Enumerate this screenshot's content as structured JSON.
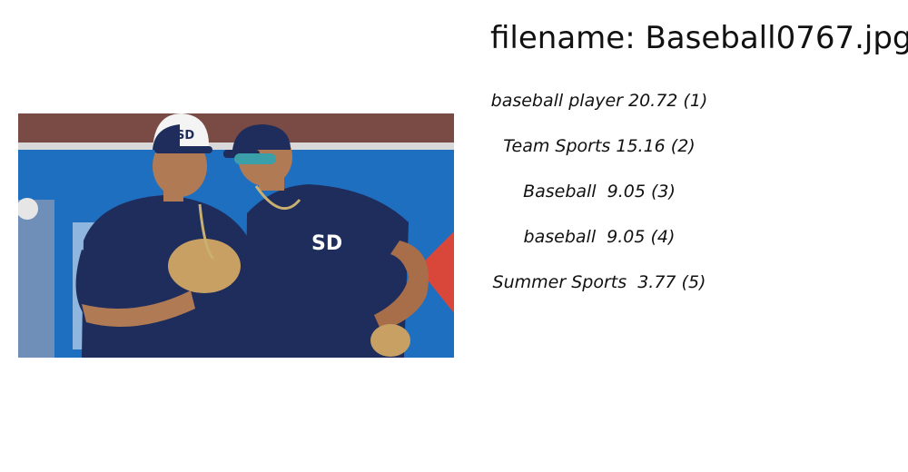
{
  "title": "filename: Baseball0767.jpg",
  "labels": [
    "baseball player 20.72 (1)",
    "Team Sports 15.16 (2)",
    "Baseball  9.05 (3)",
    "baseball  9.05 (4)",
    "Summer Sports  3.77 (5)"
  ],
  "photo": {
    "subject": "two baseball players in navy jerseys and SD caps",
    "cap_logo": "SD",
    "colors": {
      "wall": "#1f6fc0",
      "jersey": "#1e2d5c",
      "skin": "#b07a55",
      "glove": "#c8a064"
    }
  }
}
